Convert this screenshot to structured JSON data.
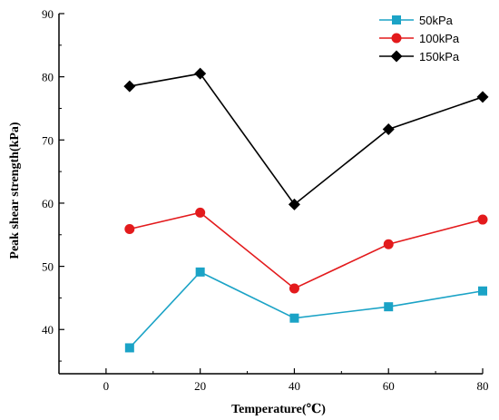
{
  "chart_data": {
    "type": "line",
    "xlabel": "Temperature(℃)",
    "ylabel": "Peak shear strength(kPa)",
    "xlim": [
      -10,
      80
    ],
    "ylim": [
      33,
      90
    ],
    "xticks": [
      0,
      20,
      40,
      60,
      80
    ],
    "yticks": [
      40,
      50,
      60,
      70,
      80,
      90
    ],
    "x": [
      5,
      20,
      40,
      60,
      80
    ],
    "legend_position": "top-right",
    "grid": false,
    "series": [
      {
        "name": "50kPa",
        "color": "#1ba3c6",
        "marker": "square",
        "values": [
          37.1,
          49.1,
          41.8,
          43.6,
          46.1
        ]
      },
      {
        "name": "100kPa",
        "color": "#e31a1c",
        "marker": "circle",
        "values": [
          55.9,
          58.5,
          46.5,
          53.5,
          57.4
        ]
      },
      {
        "name": "150kPa",
        "color": "#000000",
        "marker": "diamond",
        "values": [
          78.5,
          80.5,
          59.8,
          71.7,
          76.8
        ]
      }
    ]
  }
}
